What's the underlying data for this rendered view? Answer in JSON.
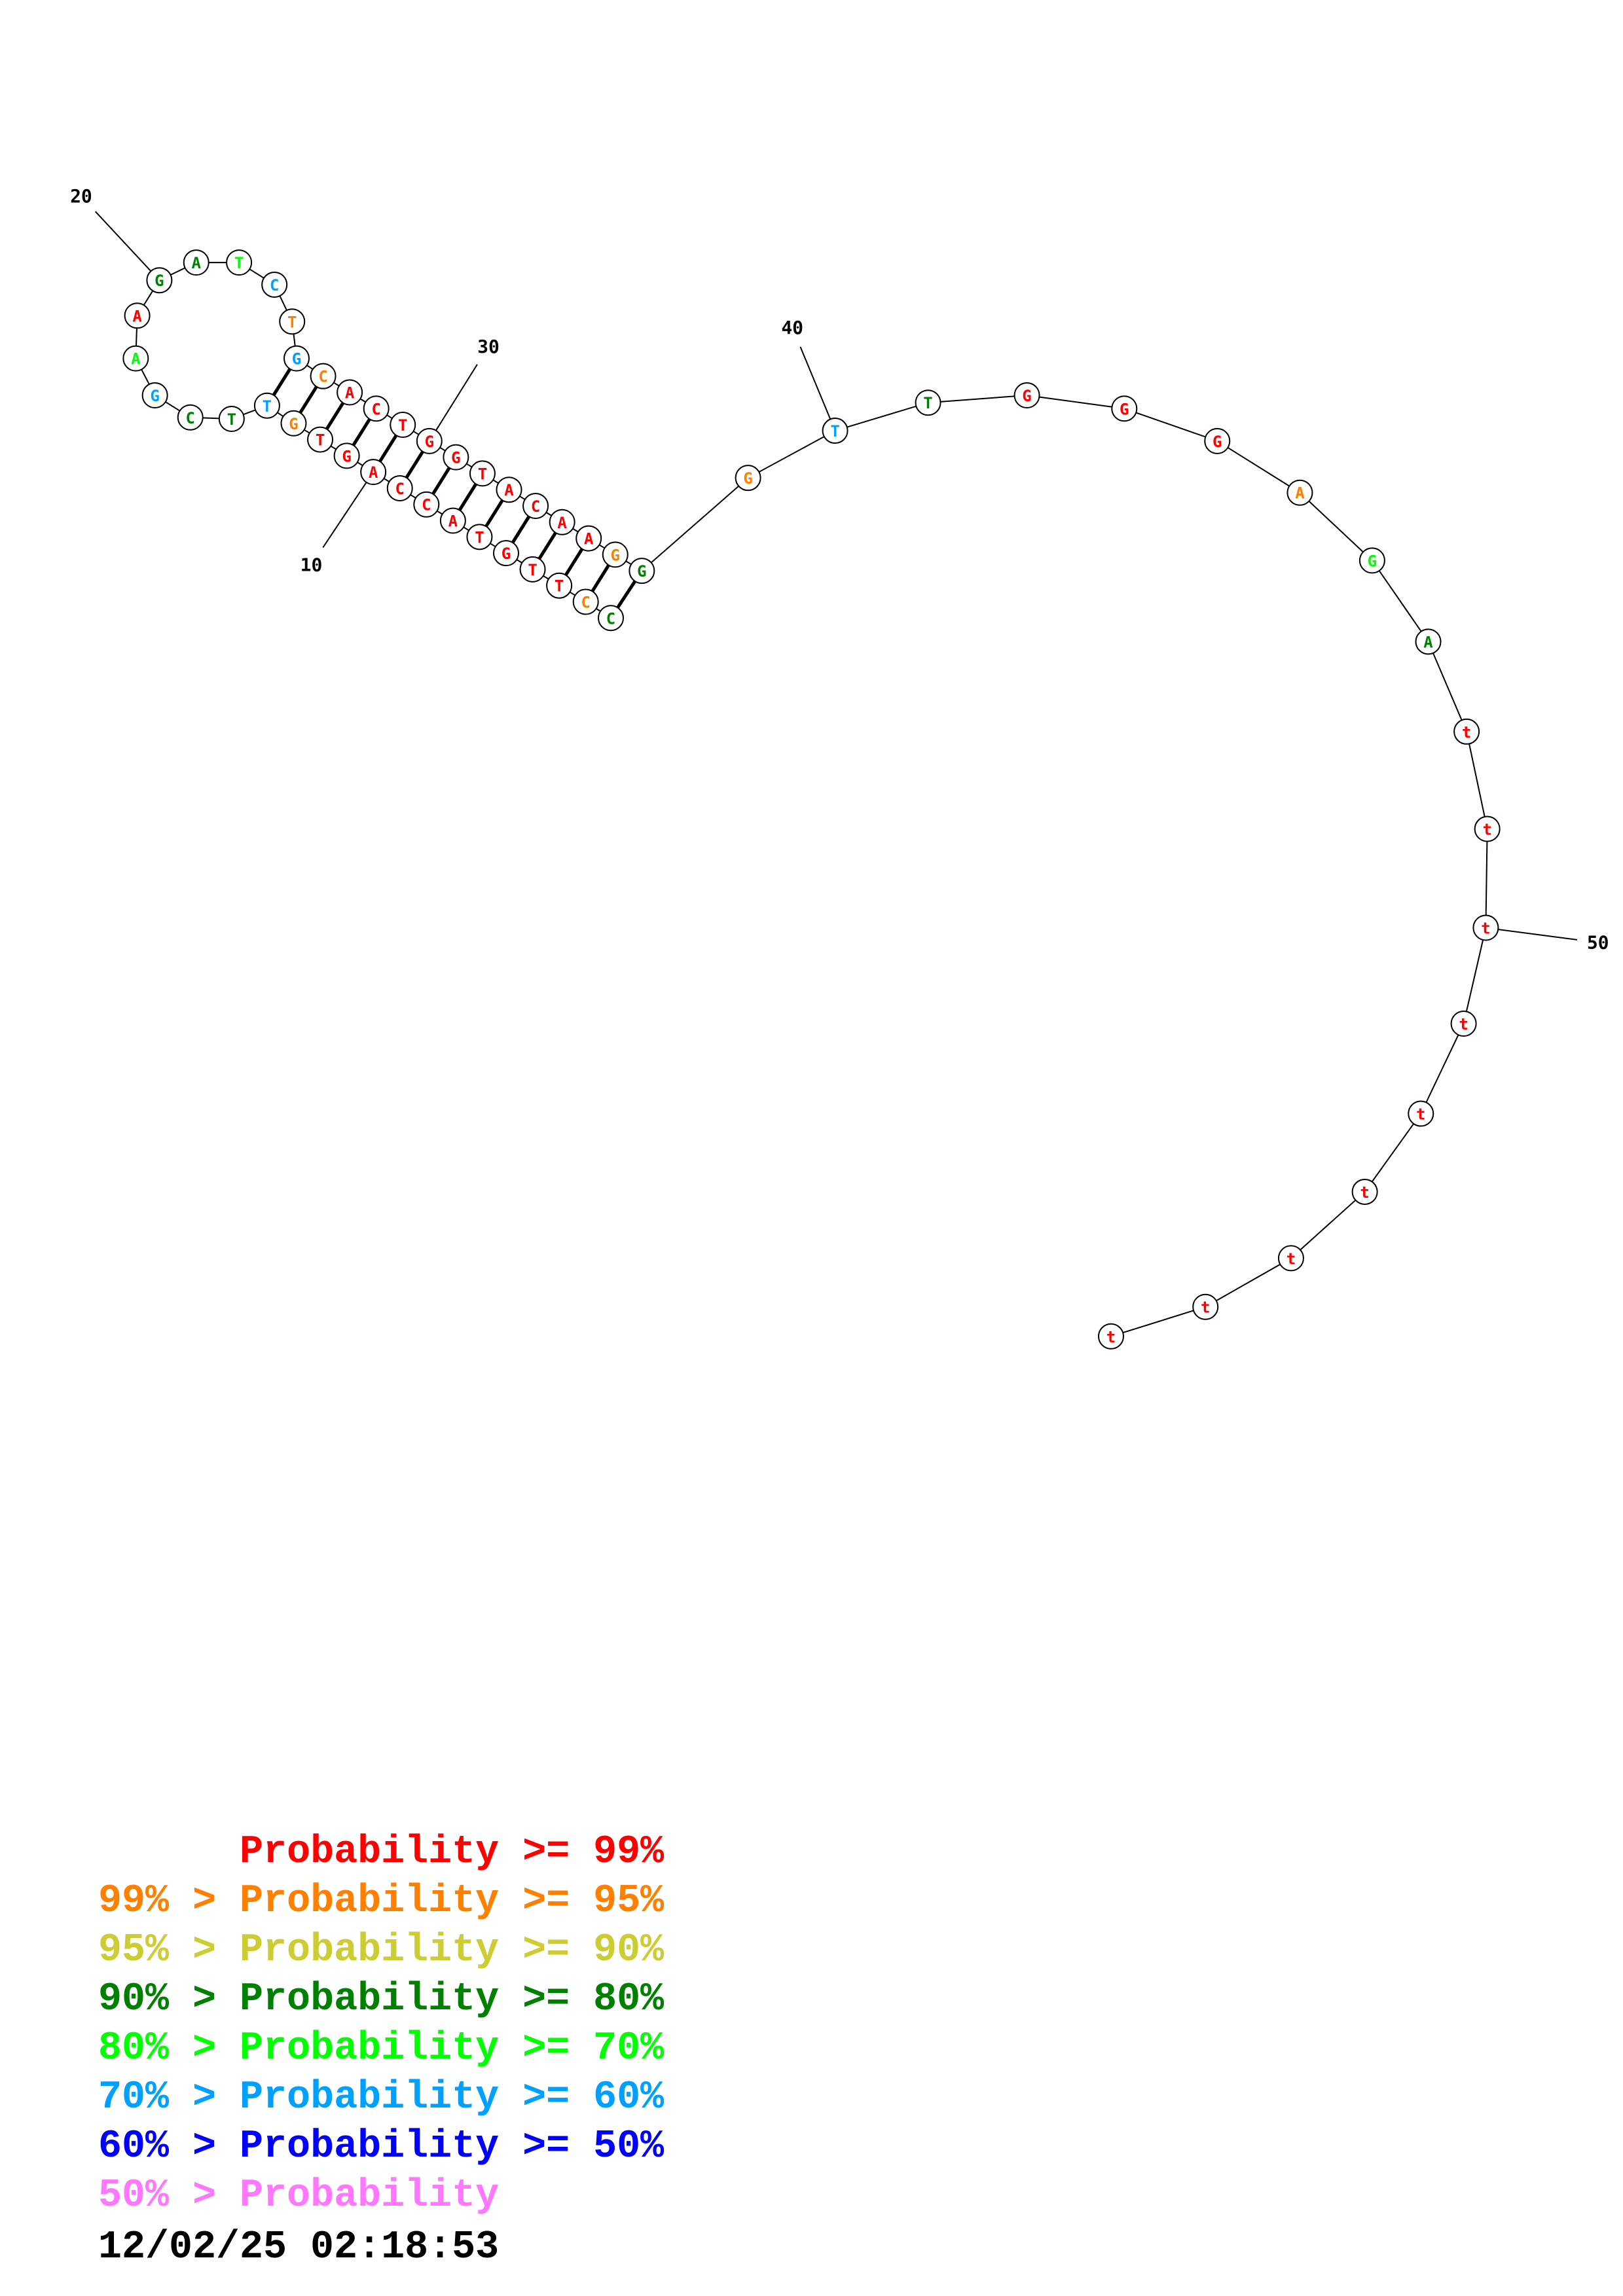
{
  "colors": {
    "p99": "#ff0000",
    "p95": "#ff7f00",
    "p90": "#cccc33",
    "p80": "#008000",
    "p70": "#00ff00",
    "p60": "#00a0ff",
    "p50": "#0000ff",
    "plow": "#ff77ff"
  },
  "structure": {
    "nucleotides": [
      {
        "n": 1,
        "base": "C",
        "color": "p80"
      },
      {
        "n": 2,
        "base": "C",
        "color": "p95"
      },
      {
        "n": 3,
        "base": "T",
        "color": "p99"
      },
      {
        "n": 4,
        "base": "T",
        "color": "p99"
      },
      {
        "n": 5,
        "base": "G",
        "color": "p99"
      },
      {
        "n": 6,
        "base": "T",
        "color": "p99"
      },
      {
        "n": 7,
        "base": "A",
        "color": "p99"
      },
      {
        "n": 8,
        "base": "C",
        "color": "p99"
      },
      {
        "n": 9,
        "base": "C",
        "color": "p99"
      },
      {
        "n": 10,
        "base": "A",
        "color": "p99"
      },
      {
        "n": 11,
        "base": "G",
        "color": "p99"
      },
      {
        "n": 12,
        "base": "T",
        "color": "p99"
      },
      {
        "n": 13,
        "base": "G",
        "color": "p95"
      },
      {
        "n": 14,
        "base": "T",
        "color": "p60"
      },
      {
        "n": 15,
        "base": "T",
        "color": "p80"
      },
      {
        "n": 16,
        "base": "C",
        "color": "p80"
      },
      {
        "n": 17,
        "base": "G",
        "color": "p60"
      },
      {
        "n": 18,
        "base": "A",
        "color": "p70"
      },
      {
        "n": 19,
        "base": "A",
        "color": "p99"
      },
      {
        "n": 20,
        "base": "G",
        "color": "p80"
      },
      {
        "n": 21,
        "base": "A",
        "color": "p80"
      },
      {
        "n": 22,
        "base": "T",
        "color": "p70"
      },
      {
        "n": 23,
        "base": "C",
        "color": "p60"
      },
      {
        "n": 24,
        "base": "T",
        "color": "p95"
      },
      {
        "n": 25,
        "base": "G",
        "color": "p60"
      },
      {
        "n": 26,
        "base": "C",
        "color": "p95"
      },
      {
        "n": 27,
        "base": "A",
        "color": "p99"
      },
      {
        "n": 28,
        "base": "C",
        "color": "p99"
      },
      {
        "n": 29,
        "base": "T",
        "color": "p99"
      },
      {
        "n": 30,
        "base": "G",
        "color": "p99"
      },
      {
        "n": 31,
        "base": "G",
        "color": "p99"
      },
      {
        "n": 32,
        "base": "T",
        "color": "p99"
      },
      {
        "n": 33,
        "base": "A",
        "color": "p99"
      },
      {
        "n": 34,
        "base": "C",
        "color": "p99"
      },
      {
        "n": 35,
        "base": "A",
        "color": "p99"
      },
      {
        "n": 36,
        "base": "A",
        "color": "p99"
      },
      {
        "n": 37,
        "base": "G",
        "color": "p95"
      },
      {
        "n": 38,
        "base": "G",
        "color": "p80"
      },
      {
        "n": 39,
        "base": "G",
        "color": "p95"
      },
      {
        "n": 40,
        "base": "T",
        "color": "p60"
      },
      {
        "n": 41,
        "base": "T",
        "color": "p80"
      },
      {
        "n": 42,
        "base": "G",
        "color": "p99"
      },
      {
        "n": 43,
        "base": "G",
        "color": "p99"
      },
      {
        "n": 44,
        "base": "G",
        "color": "p99"
      },
      {
        "n": 45,
        "base": "A",
        "color": "p95"
      },
      {
        "n": 46,
        "base": "G",
        "color": "p70"
      },
      {
        "n": 47,
        "base": "A",
        "color": "p80"
      },
      {
        "n": 48,
        "base": "t",
        "color": "p99"
      },
      {
        "n": 49,
        "base": "t",
        "color": "p99"
      },
      {
        "n": 50,
        "base": "t",
        "color": "p99"
      },
      {
        "n": 51,
        "base": "t",
        "color": "p99"
      },
      {
        "n": 52,
        "base": "t",
        "color": "p99"
      },
      {
        "n": 53,
        "base": "t",
        "color": "p99"
      },
      {
        "n": 54,
        "base": "t",
        "color": "p99"
      },
      {
        "n": 55,
        "base": "t",
        "color": "p99"
      },
      {
        "n": 56,
        "base": "t",
        "color": "p99"
      }
    ],
    "pairs": [
      [
        1,
        38
      ],
      [
        2,
        37
      ],
      [
        3,
        36
      ],
      [
        4,
        35
      ],
      [
        5,
        34
      ],
      [
        6,
        33
      ],
      [
        7,
        32
      ],
      [
        8,
        31
      ],
      [
        9,
        30
      ],
      [
        10,
        29
      ],
      [
        11,
        28
      ],
      [
        12,
        27
      ],
      [
        13,
        26
      ],
      [
        14,
        25
      ]
    ],
    "position_labels": [
      {
        "n": 10,
        "text": "10"
      },
      {
        "n": 20,
        "text": "20"
      },
      {
        "n": 30,
        "text": "30"
      },
      {
        "n": 40,
        "text": "40"
      },
      {
        "n": 50,
        "text": "50"
      }
    ]
  },
  "legend": [
    {
      "prefix": "    ",
      "label": "Probability >= 99%",
      "color": "p99"
    },
    {
      "prefix": "99% > ",
      "label": "Probability >= 95%",
      "color": "p95"
    },
    {
      "prefix": "95% > ",
      "label": "Probability >= 90%",
      "color": "p90"
    },
    {
      "prefix": "90% > ",
      "label": "Probability >= 80%",
      "color": "p80"
    },
    {
      "prefix": "80% > ",
      "label": "Probability >= 70%",
      "color": "p70"
    },
    {
      "prefix": "70% > ",
      "label": "Probability >= 60%",
      "color": "p60"
    },
    {
      "prefix": "60% > ",
      "label": "Probability >= 50%",
      "color": "p50"
    },
    {
      "prefix": "50% > ",
      "label": "Probability",
      "color": "plow"
    }
  ],
  "timestamp": "12/02/25 02:18:53"
}
